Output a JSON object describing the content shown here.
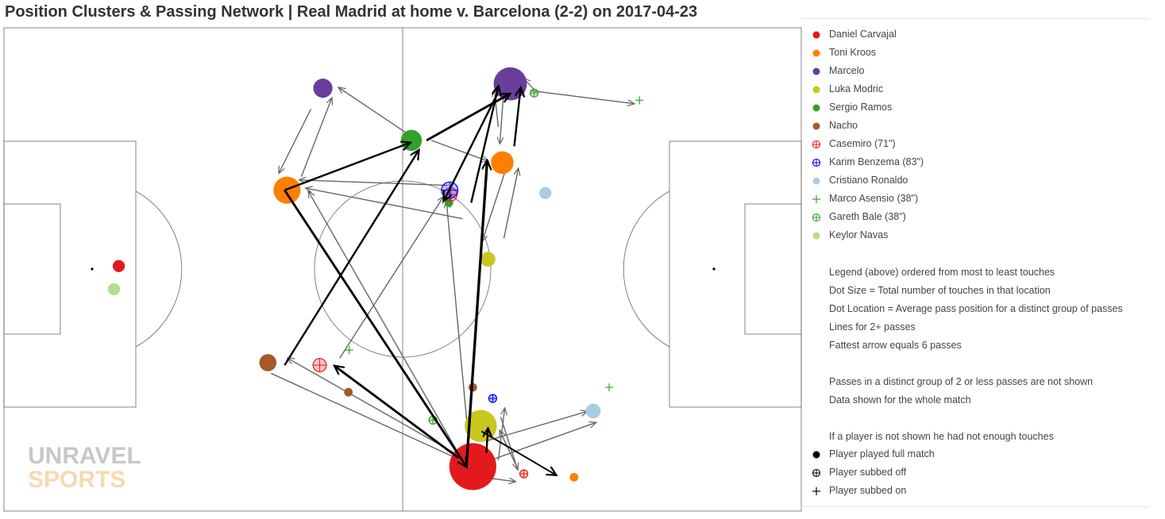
{
  "title": "Position Clusters & Passing Network | Real Madrid at home v. Barcelona (2-2) on 2017-04-23",
  "logo": {
    "line1": "UNRAVEL",
    "line2": "SPORTS"
  },
  "legend": {
    "players": [
      {
        "name": "Daniel Carvajal",
        "color": "#e31a1c",
        "marker": "dot"
      },
      {
        "name": "Toni Kroos",
        "color": "#ff7f00",
        "marker": "dot"
      },
      {
        "name": "Marcelo",
        "color": "#6a3d9a",
        "marker": "dot"
      },
      {
        "name": "Luka Modric",
        "color": "#c7c720",
        "marker": "dot"
      },
      {
        "name": "Sergio Ramos",
        "color": "#33a02c",
        "marker": "dot"
      },
      {
        "name": "Nacho",
        "color": "#a6582a",
        "marker": "dot"
      },
      {
        "name": "Casemiro (71\")",
        "color": "#e31a1c",
        "marker": "subbed-off"
      },
      {
        "name": "Karim Benzema (83\")",
        "color": "#0000ff",
        "marker": "subbed-off"
      },
      {
        "name": "Cristiano Ronaldo",
        "color": "#a6cee3",
        "marker": "dot"
      },
      {
        "name": "Marco Asensio (38\")",
        "color": "#33a02c",
        "marker": "subbed-on"
      },
      {
        "name": "Gareth Bale (38\")",
        "color": "#33a02c",
        "marker": "subbed-off"
      },
      {
        "name": "Keylor Navas",
        "color": "#b2df8a",
        "marker": "dot"
      }
    ],
    "notes": [
      "Legend (above) ordered from most to least touches",
      "Dot Size = Total number of touches in that location",
      "Dot Location = Average pass position for a distinct group of passes",
      "Lines for 2+ passes",
      "Fattest arrow equals 6 passes",
      "Passes in a distinct group of 2 or less passes are not shown",
      "Data shown for the whole match",
      "If a player is not shown he had not enough touches"
    ],
    "markers": [
      {
        "label": "Player played full match",
        "marker": "dot",
        "color": "#000000"
      },
      {
        "label": "Player subbed off",
        "marker": "subbed-off",
        "color": "#000000"
      },
      {
        "label": "Player subbed on",
        "marker": "subbed-on",
        "color": "#000000"
      }
    ]
  },
  "chart_data": {
    "type": "scatter",
    "pitch": {
      "length": 100,
      "width": 100,
      "grid": false
    },
    "clusters": [
      {
        "player": "Daniel Carvajal",
        "x": 58.8,
        "y": 90.8,
        "touches": 30
      },
      {
        "player": "Daniel Carvajal",
        "x": 14.4,
        "y": 49.3,
        "touches": 2
      },
      {
        "player": "Daniel Carvajal",
        "x": 65.2,
        "y": 92.3,
        "touches": 1,
        "marker": "subbed-off"
      },
      {
        "player": "Toni Kroos",
        "x": 35.5,
        "y": 33.6,
        "touches": 10
      },
      {
        "player": "Toni Kroos",
        "x": 62.5,
        "y": 27.9,
        "touches": 7
      },
      {
        "player": "Toni Kroos",
        "x": 71.5,
        "y": 93.0,
        "touches": 1
      },
      {
        "player": "Marcelo",
        "x": 40.0,
        "y": 12.5,
        "touches": 5
      },
      {
        "player": "Marcelo",
        "x": 63.5,
        "y": 11.6,
        "touches": 15
      },
      {
        "player": "Luka Modric",
        "x": 59.8,
        "y": 82.4,
        "touches": 14
      },
      {
        "player": "Luka Modric",
        "x": 60.7,
        "y": 47.9,
        "touches": 3
      },
      {
        "player": "Sergio Ramos",
        "x": 51.1,
        "y": 23.3,
        "touches": 6
      },
      {
        "player": "Sergio Ramos",
        "x": 55.8,
        "y": 36.2,
        "touches": 1
      },
      {
        "player": "Nacho",
        "x": 33.1,
        "y": 69.3,
        "touches": 4
      },
      {
        "player": "Nacho",
        "x": 43.2,
        "y": 75.4,
        "touches": 1
      },
      {
        "player": "Nacho",
        "x": 58.8,
        "y": 74.4,
        "touches": 1
      },
      {
        "player": "Casemiro (71\")",
        "x": 39.6,
        "y": 69.8,
        "touches": 4,
        "marker": "subbed-off"
      },
      {
        "player": "Casemiro (71\")",
        "x": 56.0,
        "y": 34.5,
        "touches": 4,
        "marker": "subbed-off"
      },
      {
        "player": "Karim Benzema (83\")",
        "x": 55.9,
        "y": 33.6,
        "touches": 6,
        "marker": "subbed-off"
      },
      {
        "player": "Karim Benzema (83\")",
        "x": 61.3,
        "y": 76.7,
        "touches": 1,
        "marker": "subbed-off"
      },
      {
        "player": "Cristiano Ronaldo",
        "x": 67.9,
        "y": 34.2,
        "touches": 2
      },
      {
        "player": "Cristiano Ronaldo",
        "x": 73.9,
        "y": 79.3,
        "touches": 3
      },
      {
        "player": "Marco Asensio (38\")",
        "x": 43.3,
        "y": 66.7,
        "touches": 1,
        "marker": "subbed-on"
      },
      {
        "player": "Marco Asensio (38\")",
        "x": 79.7,
        "y": 15.0,
        "touches": 1,
        "marker": "subbed-on"
      },
      {
        "player": "Marco Asensio (38\")",
        "x": 75.9,
        "y": 74.4,
        "touches": 1,
        "marker": "subbed-on"
      },
      {
        "player": "Gareth Bale (38\")",
        "x": 66.5,
        "y": 13.5,
        "touches": 1,
        "marker": "subbed-off"
      },
      {
        "player": "Gareth Bale (38\")",
        "x": 53.8,
        "y": 81.2,
        "touches": 1,
        "marker": "subbed-off"
      },
      {
        "player": "Keylor Navas",
        "x": 13.8,
        "y": 54.1,
        "touches": 2
      }
    ],
    "passes": [
      {
        "from": [
          35.2,
          69.8
        ],
        "to": [
          52.0,
          25.4
        ],
        "count": 4
      },
      {
        "from": [
          35.2,
          33.6
        ],
        "to": [
          50.9,
          23.8
        ],
        "count": 4
      },
      {
        "from": [
          53.0,
          23.3
        ],
        "to": [
          63.4,
          13.7
        ],
        "count": 5
      },
      {
        "from": [
          35.2,
          33.6
        ],
        "to": [
          58.0,
          90.8
        ],
        "count": 5
      },
      {
        "from": [
          58.0,
          90.8
        ],
        "to": [
          60.6,
          27.6
        ],
        "count": 6
      },
      {
        "from": [
          58.6,
          36.2
        ],
        "to": [
          62.0,
          12.2
        ],
        "count": 4
      },
      {
        "from": [
          61.9,
          13.6
        ],
        "to": [
          55.2,
          35.7
        ],
        "count": 4
      },
      {
        "from": [
          57.0,
          89.0
        ],
        "to": [
          41.5,
          70.0
        ],
        "count": 5
      },
      {
        "from": [
          60.5,
          88.0
        ],
        "to": [
          60.7,
          83.0
        ],
        "count": 4
      },
      {
        "from": [
          59.9,
          83.5
        ],
        "to": [
          69.2,
          92.5
        ],
        "count": 3
      },
      {
        "from": [
          64.0,
          24.5
        ],
        "to": [
          64.8,
          12.5
        ],
        "count": 4
      }
    ],
    "thin_passes": [
      {
        "from": [
          38.5,
          16.8
        ],
        "to": [
          34.5,
          30.0
        ]
      },
      {
        "from": [
          37.3,
          30.8
        ],
        "to": [
          41.1,
          14.6
        ]
      },
      {
        "from": [
          50.6,
          21.9
        ],
        "to": [
          42.0,
          12.4
        ]
      },
      {
        "from": [
          55.6,
          32.6
        ],
        "to": [
          37.1,
          31.5
        ]
      },
      {
        "from": [
          53.6,
          23.3
        ],
        "to": [
          60.7,
          27.6
        ]
      },
      {
        "from": [
          62.7,
          12.5
        ],
        "to": [
          62.2,
          23.9
        ]
      },
      {
        "from": [
          62.0,
          20.5
        ],
        "to": [
          61.5,
          13.0
        ]
      },
      {
        "from": [
          63.0,
          29.0
        ],
        "to": [
          60.0,
          44.1
        ]
      },
      {
        "from": [
          62.7,
          43.6
        ],
        "to": [
          64.5,
          29.2
        ]
      },
      {
        "from": [
          66.0,
          13.0
        ],
        "to": [
          79.0,
          15.7
        ]
      },
      {
        "from": [
          66.5,
          12.8
        ],
        "to": [
          65.2,
          10.5
        ]
      },
      {
        "from": [
          57.5,
          39.5
        ],
        "to": [
          37.9,
          33.2
        ]
      },
      {
        "from": [
          57.5,
          89.5
        ],
        "to": [
          38.2,
          33.9
        ]
      },
      {
        "from": [
          58.5,
          89.5
        ],
        "to": [
          55.5,
          36.0
        ]
      },
      {
        "from": [
          42.1,
          68.4
        ],
        "to": [
          55.1,
          35.0
        ]
      },
      {
        "from": [
          33.5,
          71.5
        ],
        "to": [
          58.0,
          90.0
        ]
      },
      {
        "from": [
          57.8,
          89.2
        ],
        "to": [
          35.6,
          68.4
        ]
      },
      {
        "from": [
          60.5,
          85.5
        ],
        "to": [
          73.1,
          79.4
        ]
      },
      {
        "from": [
          61.0,
          89.5
        ],
        "to": [
          74.2,
          81.7
        ]
      },
      {
        "from": [
          62.0,
          89.5
        ],
        "to": [
          62.8,
          78.8
        ]
      },
      {
        "from": [
          64.5,
          91.5
        ],
        "to": [
          62.2,
          83.4
        ]
      },
      {
        "from": [
          60.0,
          93.0
        ],
        "to": [
          64.1,
          93.9
        ]
      },
      {
        "from": [
          62.3,
          80.5
        ],
        "to": [
          64.4,
          91.3
        ]
      }
    ]
  }
}
